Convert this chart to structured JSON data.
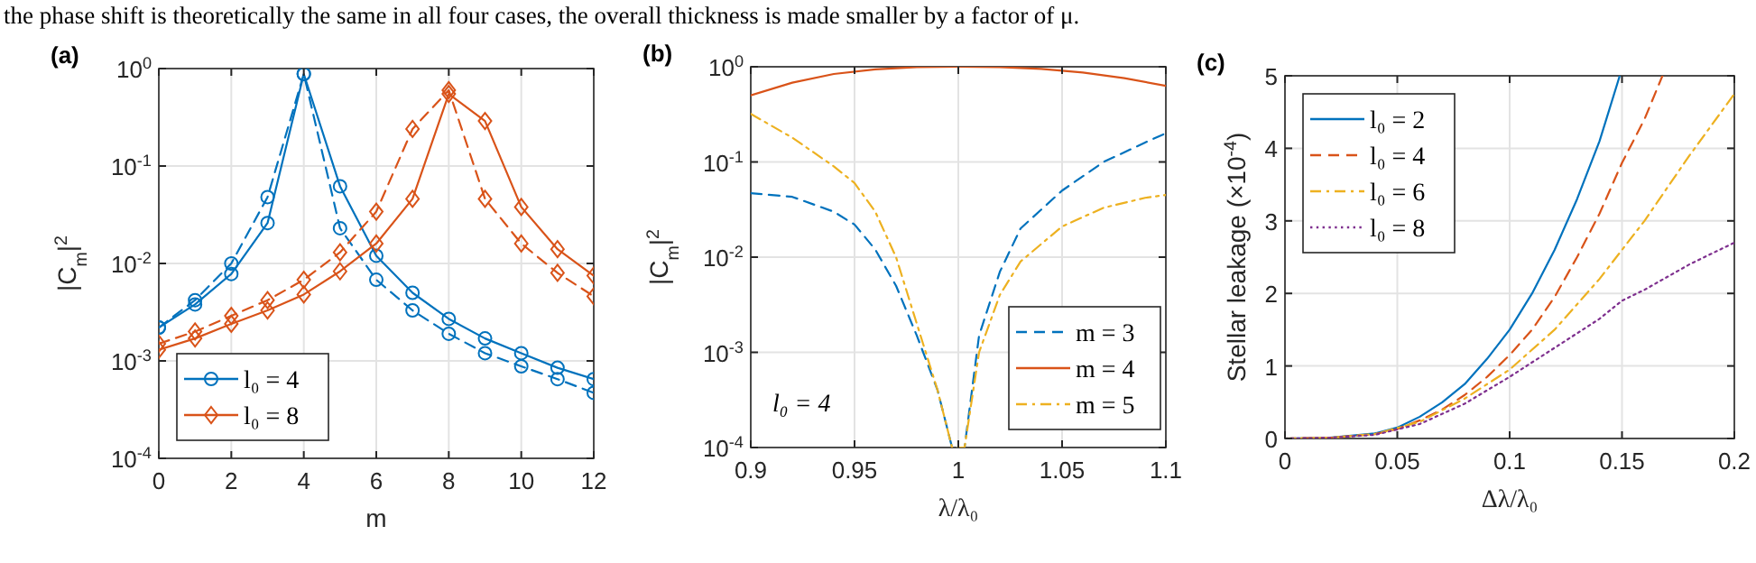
{
  "chart_data": [
    {
      "type": "line",
      "title": "(a)",
      "xlabel": "m",
      "ylabel": "|C$_{m}$|$^{2}$",
      "log": "y",
      "grid": true,
      "legend": "bottom left",
      "annotations": [
        "the phase shift is theoretically the same in all four cases, the overall thickness is made smaller by a factor of μ."
      ],
      "xlim": [
        0,
        12
      ],
      "xticks": [
        0,
        2,
        4,
        6,
        8,
        10,
        12
      ],
      "ylim": [
        0.0001,
        1
      ],
      "yticks": [
        {
          "value": 0.0001,
          "label": "10$^{-4}$"
        },
        {
          "value": 0.001,
          "label": "10$^{-3}$"
        },
        {
          "value": 0.01,
          "label": "10$^{-2}$"
        },
        {
          "value": 0.1,
          "label": "10$^{-1}$"
        },
        {
          "value": 1,
          "label": "10$^{0}$"
        }
      ],
      "x": [
        0,
        1,
        2,
        3,
        4,
        5,
        6,
        7,
        8,
        9,
        10,
        11,
        12
      ],
      "series": [
        {
          "name": "l₀ = 4",
          "color": "#0072bd",
          "marker": "circle",
          "line_style": "solid",
          "values": [
            0.0022,
            0.0038,
            0.0078,
            0.026,
            0.88,
            0.062,
            0.012,
            0.005,
            0.0027,
            0.0017,
            0.0012,
            0.00085,
            0.00065
          ]
        },
        {
          "color": "#0072bd",
          "marker": "circle",
          "line_style": "dashed",
          "values": [
            0.0022,
            0.0042,
            0.01,
            0.048,
            0.88,
            0.023,
            0.0068,
            0.0033,
            0.0019,
            0.0012,
            0.00088,
            0.00065,
            0.00047
          ]
        },
        {
          "name": "l₀ = 8",
          "color": "#d95319",
          "marker": "diamond",
          "line_style": "solid",
          "values": [
            0.0013,
            0.0017,
            0.0024,
            0.0033,
            0.0048,
            0.0083,
            0.016,
            0.046,
            0.55,
            0.29,
            0.038,
            0.014,
            0.0075
          ]
        },
        {
          "color": "#d95319",
          "marker": "diamond",
          "line_style": "dashed",
          "values": [
            0.0015,
            0.002,
            0.0029,
            0.0042,
            0.0068,
            0.013,
            0.034,
            0.24,
            0.6,
            0.046,
            0.016,
            0.008,
            0.0046
          ]
        }
      ]
    },
    {
      "type": "line",
      "title": "(b)",
      "xlabel": "λ/λ₀",
      "ylabel": "|C$_{m}$|$^{2}$",
      "log": "y",
      "grid": true,
      "legend": "bottom right",
      "annotations": [
        "l₀ = 4"
      ],
      "xlim": [
        0.9,
        1.1
      ],
      "xticks": [
        0.9,
        0.95,
        1,
        1.05,
        1.1
      ],
      "ylim": [
        0.0001,
        1
      ],
      "yticks": [
        {
          "value": 0.0001,
          "label": "10$^{-4}$"
        },
        {
          "value": 0.001,
          "label": "10$^{-3}$"
        },
        {
          "value": 0.01,
          "label": "10$^{-2}$"
        },
        {
          "value": 0.1,
          "label": "10$^{-1}$"
        },
        {
          "value": 1,
          "label": "10$^{0}$"
        }
      ],
      "series": [
        {
          "name": "m = 3",
          "color": "#0072bd",
          "line_style": "dashed",
          "x": [
            0.9,
            0.92,
            0.94,
            0.95,
            0.96,
            0.97,
            0.98,
            0.99,
            0.997,
            1.003,
            1.01,
            1.02,
            1.03,
            1.05,
            1.07,
            1.09,
            1.1
          ],
          "values": [
            0.047,
            0.043,
            0.03,
            0.022,
            0.012,
            0.005,
            0.0015,
            0.0004,
            0.0001,
            0.0001,
            0.0015,
            0.007,
            0.02,
            0.05,
            0.1,
            0.16,
            0.2
          ]
        },
        {
          "name": "m = 4",
          "color": "#d95319",
          "line_style": "solid",
          "x": [
            0.9,
            0.92,
            0.94,
            0.96,
            0.98,
            1,
            1.02,
            1.04,
            1.06,
            1.08,
            1.1
          ],
          "values": [
            0.5,
            0.68,
            0.84,
            0.94,
            0.99,
            1,
            0.99,
            0.95,
            0.87,
            0.76,
            0.63
          ]
        },
        {
          "name": "m = 5",
          "color": "#edb120",
          "line_style": "dashdot",
          "x": [
            0.9,
            0.92,
            0.94,
            0.95,
            0.96,
            0.97,
            0.98,
            0.99,
            0.997,
            1.003,
            1.01,
            1.02,
            1.03,
            1.05,
            1.07,
            1.09,
            1.1
          ],
          "values": [
            0.32,
            0.18,
            0.09,
            0.06,
            0.03,
            0.01,
            0.002,
            0.0004,
            0.0001,
            0.0001,
            0.001,
            0.004,
            0.009,
            0.021,
            0.033,
            0.042,
            0.045
          ]
        }
      ]
    },
    {
      "type": "line",
      "title": "(c)",
      "xlabel": "Δλ/λ₀",
      "ylabel": "Stellar leakage (×10$^{-4}$)",
      "grid": true,
      "legend": "top left",
      "xlim": [
        0,
        0.2
      ],
      "xticks": [
        0,
        0.05,
        0.1,
        0.15,
        0.2
      ],
      "ylim": [
        0,
        5
      ],
      "yticks": [
        0,
        1,
        2,
        3,
        4,
        5
      ],
      "series": [
        {
          "name": "l₀ = 2",
          "color": "#0072bd",
          "line_style": "solid",
          "x": [
            0,
            0.02,
            0.04,
            0.05,
            0.06,
            0.07,
            0.08,
            0.09,
            0.1,
            0.11,
            0.12,
            0.13,
            0.14,
            0.149
          ],
          "values": [
            0,
            0.01,
            0.07,
            0.15,
            0.3,
            0.5,
            0.75,
            1.1,
            1.5,
            2.0,
            2.6,
            3.3,
            4.1,
            5.0
          ]
        },
        {
          "name": "l₀ = 4",
          "color": "#d95319",
          "line_style": "dashed",
          "x": [
            0,
            0.02,
            0.04,
            0.05,
            0.06,
            0.07,
            0.08,
            0.09,
            0.1,
            0.11,
            0.12,
            0.13,
            0.14,
            0.15,
            0.16,
            0.168
          ],
          "values": [
            0,
            0.01,
            0.06,
            0.13,
            0.25,
            0.4,
            0.6,
            0.85,
            1.15,
            1.5,
            1.95,
            2.5,
            3.1,
            3.8,
            4.4,
            5.0
          ]
        },
        {
          "name": "l₀ = 6",
          "color": "#edb120",
          "line_style": "dashdot",
          "x": [
            0,
            0.02,
            0.04,
            0.06,
            0.08,
            0.1,
            0.12,
            0.14,
            0.15,
            0.16,
            0.18,
            0.2
          ],
          "values": [
            0,
            0.01,
            0.06,
            0.23,
            0.55,
            0.95,
            1.5,
            2.2,
            2.6,
            3.0,
            3.9,
            4.75
          ]
        },
        {
          "name": "l₀ = 8",
          "color": "#7e2f8e",
          "line_style": "dotted",
          "x": [
            0,
            0.02,
            0.04,
            0.06,
            0.08,
            0.1,
            0.12,
            0.14,
            0.15,
            0.16,
            0.18,
            0.2
          ],
          "values": [
            0,
            0.01,
            0.05,
            0.2,
            0.48,
            0.85,
            1.25,
            1.65,
            1.9,
            2.05,
            2.4,
            2.7
          ]
        }
      ]
    }
  ]
}
